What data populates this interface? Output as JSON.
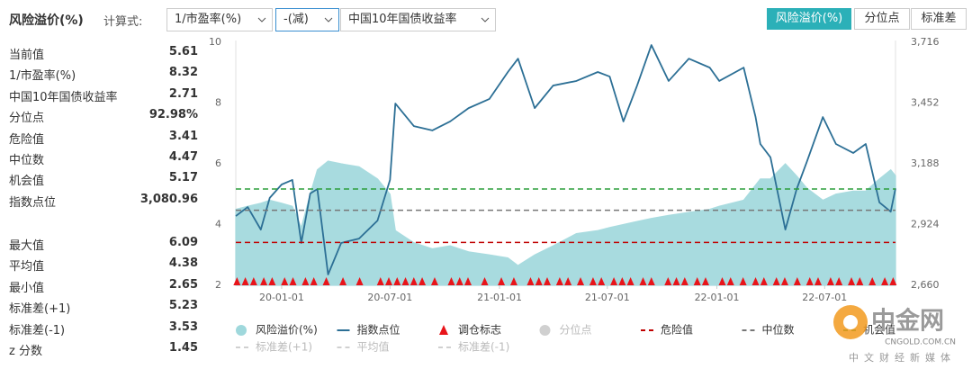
{
  "header": {
    "title": "风险溢价(%)",
    "calc_label": "计算式:",
    "dropdowns": [
      "1/市盈率(%)",
      "-(减)",
      "中国10年国债收益率"
    ],
    "tabs": [
      "风险溢价(%)",
      "分位点",
      "标准差"
    ]
  },
  "stats": {
    "top": [
      {
        "label": "当前值",
        "value": "5.61"
      },
      {
        "label": "1/市盈率(%)",
        "value": "8.32"
      },
      {
        "label": "中国10年国债收益率",
        "value": "2.71"
      },
      {
        "label": "分位点",
        "value": "92.98%"
      },
      {
        "label": "危险值",
        "value": "3.41"
      },
      {
        "label": "中位数",
        "value": "4.47"
      },
      {
        "label": "机会值",
        "value": "5.17"
      },
      {
        "label": "指数点位",
        "value": "3,080.96"
      }
    ],
    "bottom": [
      {
        "label": "最大值",
        "value": "6.09"
      },
      {
        "label": "平均值",
        "value": "4.38"
      },
      {
        "label": "最小值",
        "value": "2.65"
      },
      {
        "label": "标准差(+1)",
        "value": "5.23"
      },
      {
        "label": "标准差(-1)",
        "value": "3.53"
      },
      {
        "label": "z 分数",
        "value": "1.45"
      }
    ]
  },
  "chart_data": {
    "type": "area_line",
    "x": [
      "19-10-16",
      "19-11-05",
      "19-11-27",
      "19-12-12",
      "20-01-01",
      "20-01-19",
      "20-02-03",
      "20-02-18",
      "20-03-01",
      "20-03-19",
      "20-04-10",
      "20-05-10",
      "20-06-10",
      "20-07-01",
      "20-07-10",
      "20-08-10",
      "20-09-10",
      "20-10-10",
      "20-11-10",
      "20-12-15",
      "21-01-15",
      "21-02-01",
      "21-03-01",
      "21-04-01",
      "21-05-10",
      "21-06-15",
      "21-07-05",
      "21-07-28",
      "21-08-20",
      "21-09-13",
      "21-10-12",
      "21-11-15",
      "21-12-20",
      "22-01-05",
      "22-02-15",
      "22-03-07",
      "22-03-15",
      "22-04-01",
      "22-04-26",
      "22-05-15",
      "22-06-01",
      "22-06-28",
      "22-07-20",
      "22-08-18",
      "22-09-08",
      "22-10-01",
      "22-10-20",
      "22-10-28"
    ],
    "series": [
      {
        "name": "风险溢价(%)",
        "kind": "area",
        "color": "#9fd8dc",
        "values": [
          4.5,
          4.6,
          4.7,
          4.8,
          4.7,
          4.6,
          3.9,
          5.0,
          5.8,
          6.09,
          6.0,
          5.9,
          5.5,
          5.0,
          3.8,
          3.4,
          3.2,
          3.3,
          3.1,
          3.0,
          2.9,
          2.65,
          3.0,
          3.3,
          3.7,
          3.8,
          3.9,
          4.0,
          4.1,
          4.2,
          4.3,
          4.4,
          4.5,
          4.6,
          4.8,
          5.3,
          5.5,
          5.5,
          6.0,
          5.6,
          5.2,
          4.8,
          5.0,
          5.1,
          5.1,
          5.5,
          5.8,
          5.61
        ]
      },
      {
        "name": "指数点位",
        "kind": "line",
        "axis": "y2",
        "color": "#2c6f95",
        "values": [
          2961,
          3000,
          2902,
          3040,
          3098,
          3118,
          2844,
          3059,
          3078,
          2707,
          2844,
          2863,
          2941,
          3118,
          3450,
          3352,
          3333,
          3372,
          3430,
          3470,
          3587,
          3645,
          3430,
          3528,
          3548,
          3587,
          3567,
          3372,
          3528,
          3704,
          3548,
          3645,
          3606,
          3548,
          3606,
          3391,
          3274,
          3216,
          2902,
          3078,
          3196,
          3391,
          3274,
          3235,
          3274,
          3020,
          2980,
          3080.96
        ]
      }
    ],
    "markers": {
      "name": "调仓标志",
      "color": "#e8141a",
      "x": [
        "19-10-18",
        "19-11-01",
        "19-11-15",
        "19-12-02",
        "19-12-16",
        "20-01-06",
        "20-01-20",
        "20-02-10",
        "20-02-24",
        "20-03-16",
        "20-04-13",
        "20-05-11",
        "20-06-15",
        "20-06-29",
        "20-07-13",
        "20-07-27",
        "20-08-10",
        "20-08-24",
        "20-09-14",
        "20-10-12",
        "20-10-26",
        "20-11-09",
        "20-12-07",
        "21-01-04",
        "21-01-25",
        "21-02-22",
        "21-03-08",
        "21-03-22",
        "21-04-12",
        "21-04-26",
        "21-05-17",
        "21-06-07",
        "21-06-21",
        "21-07-12",
        "21-07-26",
        "21-08-09",
        "21-08-30",
        "21-09-13",
        "21-10-11",
        "21-10-25",
        "21-11-08",
        "21-11-29",
        "21-12-13",
        "22-01-10",
        "22-01-24",
        "22-02-14",
        "22-03-07",
        "22-03-21",
        "22-04-11",
        "22-04-25",
        "22-05-16",
        "22-06-06",
        "22-06-20",
        "22-07-11",
        "22-07-25",
        "22-08-15",
        "22-08-29",
        "22-09-19",
        "22-10-10",
        "22-10-24"
      ]
    },
    "ref_lines": [
      {
        "name": "危险值",
        "color": "#c00000",
        "value": 3.41
      },
      {
        "name": "中位数",
        "color": "#777777",
        "value": 4.47
      },
      {
        "name": "机会值",
        "color": "#2a9d3a",
        "value": 5.17
      }
    ],
    "inactive_legend": [
      {
        "name": "分位点",
        "symbol": "circle"
      },
      {
        "name": "标准差(+1)",
        "symbol": "dash"
      },
      {
        "name": "平均值",
        "symbol": "dash"
      },
      {
        "name": "标准差(-1)",
        "symbol": "dash"
      }
    ],
    "xlim": [
      "19-10-16",
      "22-10-28"
    ],
    "xticks": [
      "20-01-01",
      "20-07-01",
      "21-01-01",
      "21-07-01",
      "22-01-01",
      "22-07-01"
    ],
    "ylim": [
      2,
      10
    ],
    "yticks": [
      2,
      4,
      6,
      8,
      10
    ],
    "y2lim": [
      2660,
      3716
    ],
    "y2ticks": [
      {
        "value": 2660,
        "label": "2,660"
      },
      {
        "value": 2924,
        "label": "2,924"
      },
      {
        "value": 3188,
        "label": "3,188"
      },
      {
        "value": 3452,
        "label": "3,452"
      },
      {
        "value": 3716,
        "label": "3,716"
      }
    ]
  },
  "watermark": {
    "name": "中金网",
    "url": "CNGOLD.COM.CN",
    "tagline": "中文财经新媒体"
  }
}
